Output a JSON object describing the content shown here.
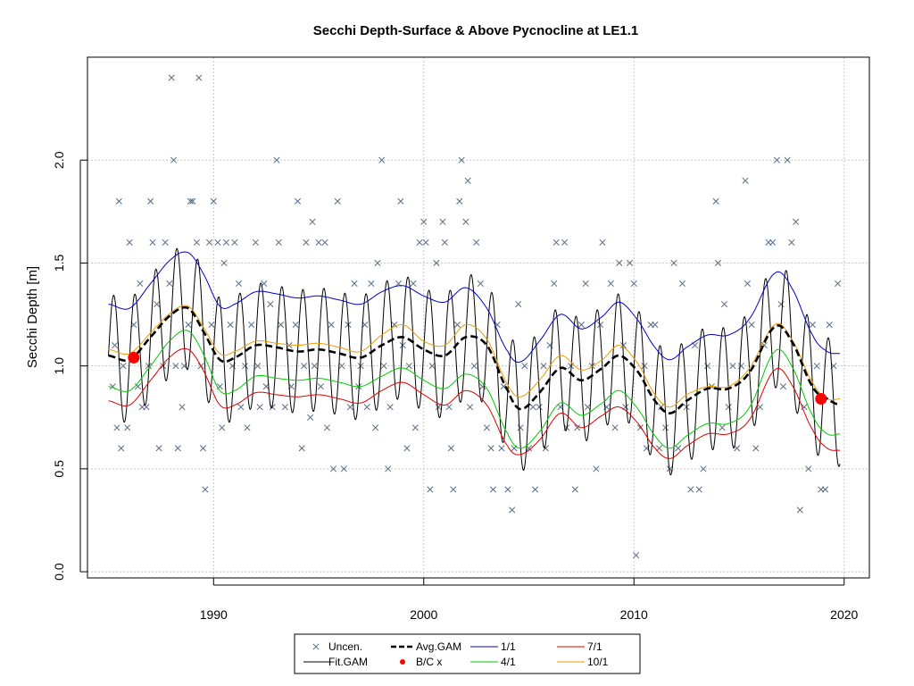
{
  "chart_data": {
    "type": "line",
    "title": "Secchi Depth-Surface & Above Pycnocline at LE1.1",
    "xlabel": "",
    "ylabel": "Secchi Depth [m]",
    "xlim": [
      1984,
      2021.2
    ],
    "ylim": [
      -0.03,
      2.5
    ],
    "x_ticks": [
      "1990",
      "2000",
      "2010",
      "2020"
    ],
    "y_ticks": [
      "0.0",
      "0.5",
      "1.0",
      "1.5",
      "2.0"
    ],
    "grid": true,
    "legend_position": "bottom-center",
    "legend": [
      {
        "label": "Uncen.",
        "symbol": "x"
      },
      {
        "label": "Fit.GAM",
        "symbol": "line"
      },
      {
        "label": "Avg.GAM",
        "symbol": "dashed"
      },
      {
        "label": "B/C x",
        "symbol": "dot"
      },
      {
        "label": "1/1",
        "symbol": "line"
      },
      {
        "label": "4/1",
        "symbol": "line"
      },
      {
        "label": "7/1",
        "symbol": "line"
      },
      {
        "label": "10/1",
        "symbol": "line"
      }
    ],
    "colors": {
      "uncensored": "#5a6b82",
      "fit": "#000000",
      "avg": "#000000",
      "bc": "#ff0000",
      "s1_1": "#0000cc",
      "s4_1": "#00cc00",
      "s7_1": "#dd0000",
      "s10_1": "#ee9a00"
    },
    "avg_gam": {
      "x": [
        1985.0,
        1986.0,
        1987.0,
        1988.0,
        1988.8,
        1989.5,
        1990.3,
        1991.0,
        1992.0,
        1993.0,
        1994.0,
        1995.0,
        1996.0,
        1997.0,
        1998.0,
        1999.0,
        2000.0,
        2001.0,
        2002.0,
        2003.0,
        2004.0,
        2004.6,
        2005.5,
        2006.5,
        2007.5,
        2008.5,
        2009.3,
        2010.2,
        2011.0,
        2011.7,
        2012.5,
        2013.5,
        2014.5,
        2015.5,
        2016.7,
        2017.5,
        2018.5,
        2019.2,
        2019.8
      ],
      "y": [
        1.05,
        1.03,
        1.14,
        1.25,
        1.28,
        1.17,
        1.03,
        1.04,
        1.1,
        1.09,
        1.07,
        1.08,
        1.06,
        1.04,
        1.1,
        1.14,
        1.08,
        1.05,
        1.14,
        1.1,
        0.88,
        0.79,
        0.87,
        0.99,
        0.93,
        0.99,
        1.05,
        0.97,
        0.83,
        0.77,
        0.83,
        0.89,
        0.89,
        0.97,
        1.19,
        1.12,
        0.9,
        0.84,
        0.81
      ]
    },
    "series_1_1": {
      "x": [
        1985.0,
        1986.0,
        1987.0,
        1988.0,
        1988.8,
        1989.5,
        1990.3,
        1991.0,
        1992.0,
        1993.0,
        1994.0,
        1995.0,
        1996.0,
        1997.0,
        1998.0,
        1999.0,
        2000.0,
        2001.0,
        2002.0,
        2003.0,
        2004.0,
        2004.6,
        2005.5,
        2006.5,
        2007.5,
        2008.5,
        2009.3,
        2010.2,
        2011.0,
        2011.7,
        2012.5,
        2013.5,
        2014.5,
        2015.5,
        2016.7,
        2017.5,
        2018.5,
        2019.2,
        2019.8
      ],
      "y": [
        1.3,
        1.28,
        1.4,
        1.52,
        1.55,
        1.45,
        1.29,
        1.3,
        1.36,
        1.35,
        1.33,
        1.34,
        1.32,
        1.3,
        1.36,
        1.39,
        1.34,
        1.31,
        1.38,
        1.28,
        1.07,
        1.02,
        1.12,
        1.25,
        1.18,
        1.24,
        1.31,
        1.22,
        1.09,
        1.03,
        1.09,
        1.15,
        1.15,
        1.23,
        1.45,
        1.38,
        1.15,
        1.07,
        1.06
      ]
    },
    "series_4_1": {
      "x": [
        1985.0,
        1986.0,
        1987.0,
        1988.0,
        1988.8,
        1989.5,
        1990.3,
        1991.0,
        1992.0,
        1993.0,
        1994.0,
        1995.0,
        1996.0,
        1997.0,
        1998.0,
        1999.0,
        2000.0,
        2001.0,
        2002.0,
        2003.0,
        2004.0,
        2004.6,
        2005.5,
        2006.5,
        2007.5,
        2008.5,
        2009.3,
        2010.2,
        2011.0,
        2011.7,
        2012.5,
        2013.5,
        2014.5,
        2015.5,
        2016.7,
        2017.5,
        2018.5,
        2019.2,
        2019.8
      ],
      "y": [
        0.9,
        0.88,
        1.0,
        1.13,
        1.17,
        1.06,
        0.88,
        0.88,
        0.95,
        0.94,
        0.93,
        0.94,
        0.92,
        0.9,
        0.95,
        0.99,
        0.93,
        0.89,
        0.96,
        0.89,
        0.67,
        0.6,
        0.68,
        0.82,
        0.76,
        0.82,
        0.88,
        0.79,
        0.66,
        0.6,
        0.66,
        0.72,
        0.72,
        0.8,
        1.07,
        1.0,
        0.76,
        0.67,
        0.67
      ]
    },
    "series_7_1": {
      "x": [
        1985.0,
        1986.0,
        1987.0,
        1988.0,
        1988.8,
        1989.5,
        1990.3,
        1991.0,
        1992.0,
        1993.0,
        1994.0,
        1995.0,
        1996.0,
        1997.0,
        1998.0,
        1999.0,
        2000.0,
        2001.0,
        2002.0,
        2003.0,
        2004.0,
        2004.6,
        2005.5,
        2006.5,
        2007.5,
        2008.5,
        2009.3,
        2010.2,
        2011.0,
        2011.7,
        2012.5,
        2013.5,
        2014.5,
        2015.5,
        2016.7,
        2017.5,
        2018.5,
        2019.2,
        2019.8
      ],
      "y": [
        0.83,
        0.81,
        0.93,
        1.05,
        1.08,
        0.98,
        0.81,
        0.81,
        0.87,
        0.86,
        0.85,
        0.86,
        0.84,
        0.82,
        0.88,
        0.92,
        0.86,
        0.81,
        0.88,
        0.81,
        0.61,
        0.57,
        0.64,
        0.77,
        0.7,
        0.76,
        0.8,
        0.72,
        0.6,
        0.55,
        0.61,
        0.67,
        0.67,
        0.74,
        0.98,
        0.91,
        0.69,
        0.6,
        0.59
      ]
    },
    "series_10_1": {
      "x": [
        1985.0,
        1986.0,
        1987.0,
        1988.0,
        1988.8,
        1989.5,
        1990.3,
        1991.0,
        1992.0,
        1993.0,
        1994.0,
        1995.0,
        1996.0,
        1997.0,
        1998.0,
        1999.0,
        2000.0,
        2001.0,
        2002.0,
        2003.0,
        2004.0,
        2004.6,
        2005.5,
        2006.5,
        2007.5,
        2008.5,
        2009.3,
        2010.2,
        2011.0,
        2011.7,
        2012.5,
        2013.5,
        2014.5,
        2015.5,
        2016.7,
        2017.5,
        2018.5,
        2019.2,
        2019.8
      ],
      "y": [
        1.08,
        1.06,
        1.16,
        1.26,
        1.29,
        1.19,
        1.06,
        1.07,
        1.12,
        1.11,
        1.1,
        1.11,
        1.09,
        1.07,
        1.15,
        1.2,
        1.12,
        1.1,
        1.2,
        1.13,
        0.91,
        0.85,
        0.93,
        1.05,
        0.98,
        1.03,
        1.1,
        1.01,
        0.86,
        0.8,
        0.86,
        0.9,
        0.9,
        0.99,
        1.2,
        1.13,
        0.92,
        0.84,
        0.84
      ]
    },
    "fit_gam": {
      "x_start": 1985.0,
      "x_end": 2019.8,
      "amplitude": 0.3,
      "period_years": 1.0,
      "peak_phase": 0.25
    },
    "bc_points": [
      {
        "x": 1986.2,
        "y": 1.04
      },
      {
        "x": 2018.9,
        "y": 0.84
      }
    ],
    "uncensored": [
      [
        1985.2,
        0.9
      ],
      [
        1985.3,
        1.1
      ],
      [
        1985.4,
        0.7
      ],
      [
        1985.5,
        1.8
      ],
      [
        1985.6,
        0.6
      ],
      [
        1985.7,
        1.0
      ],
      [
        1985.9,
        0.7
      ],
      [
        1986.0,
        1.6
      ],
      [
        1986.2,
        1.2
      ],
      [
        1986.4,
        0.9
      ],
      [
        1986.5,
        1.4
      ],
      [
        1986.6,
        0.8
      ],
      [
        1986.8,
        0.8
      ],
      [
        1986.9,
        1.0
      ],
      [
        1987.0,
        1.8
      ],
      [
        1987.1,
        1.6
      ],
      [
        1987.3,
        1.3
      ],
      [
        1987.4,
        0.6
      ],
      [
        1987.6,
        1.0
      ],
      [
        1987.7,
        1.6
      ],
      [
        1987.9,
        1.4
      ],
      [
        1988.0,
        2.4
      ],
      [
        1988.1,
        2.0
      ],
      [
        1988.2,
        1.0
      ],
      [
        1988.3,
        0.6
      ],
      [
        1988.5,
        0.8
      ],
      [
        1988.6,
        1.0
      ],
      [
        1988.8,
        1.2
      ],
      [
        1988.9,
        1.8
      ],
      [
        1989.0,
        1.8
      ],
      [
        1989.2,
        1.6
      ],
      [
        1989.3,
        2.4
      ],
      [
        1989.4,
        1.0
      ],
      [
        1989.5,
        0.6
      ],
      [
        1989.6,
        0.4
      ],
      [
        1989.8,
        1.6
      ],
      [
        1989.9,
        1.2
      ],
      [
        1990.0,
        1.8
      ],
      [
        1990.2,
        1.6
      ],
      [
        1990.3,
        0.9
      ],
      [
        1990.4,
        0.7
      ],
      [
        1990.5,
        1.5
      ],
      [
        1990.6,
        1.6
      ],
      [
        1990.8,
        1.2
      ],
      [
        1990.9,
        1.0
      ],
      [
        1991.0,
        1.6
      ],
      [
        1991.2,
        1.4
      ],
      [
        1991.3,
        0.8
      ],
      [
        1991.5,
        1.0
      ],
      [
        1991.6,
        0.7
      ],
      [
        1991.8,
        1.2
      ],
      [
        1992.0,
        1.6
      ],
      [
        1992.1,
        1.0
      ],
      [
        1992.2,
        0.8
      ],
      [
        1992.4,
        1.4
      ],
      [
        1992.5,
        0.9
      ],
      [
        1992.7,
        1.3
      ],
      [
        1992.8,
        0.8
      ],
      [
        1993.0,
        2.0
      ],
      [
        1993.1,
        1.6
      ],
      [
        1993.2,
        1.2
      ],
      [
        1993.4,
        0.8
      ],
      [
        1993.6,
        1.1
      ],
      [
        1993.7,
        0.9
      ],
      [
        1993.9,
        1.2
      ],
      [
        1994.0,
        1.8
      ],
      [
        1994.2,
        0.6
      ],
      [
        1994.3,
        1.0
      ],
      [
        1994.4,
        1.6
      ],
      [
        1994.6,
        0.75
      ],
      [
        1994.7,
        1.7
      ],
      [
        1994.8,
        1.0
      ],
      [
        1995.0,
        1.6
      ],
      [
        1995.1,
        0.9
      ],
      [
        1995.3,
        1.6
      ],
      [
        1995.4,
        0.7
      ],
      [
        1995.6,
        1.2
      ],
      [
        1995.7,
        0.5
      ],
      [
        1995.9,
        1.8
      ],
      [
        1996.1,
        1.0
      ],
      [
        1996.2,
        0.5
      ],
      [
        1996.4,
        1.2
      ],
      [
        1996.5,
        0.8
      ],
      [
        1996.7,
        1.4
      ],
      [
        1996.9,
        0.9
      ],
      [
        1997.0,
        1.0
      ],
      [
        1997.2,
        1.2
      ],
      [
        1997.3,
        0.8
      ],
      [
        1997.5,
        1.4
      ],
      [
        1997.7,
        0.7
      ],
      [
        1997.8,
        1.5
      ],
      [
        1998.0,
        2.0
      ],
      [
        1998.1,
        1.0
      ],
      [
        1998.3,
        0.5
      ],
      [
        1998.4,
        0.8
      ],
      [
        1998.6,
        1.2
      ],
      [
        1998.8,
        1.4
      ],
      [
        1998.9,
        1.8
      ],
      [
        1999.0,
        1.1
      ],
      [
        1999.2,
        0.6
      ],
      [
        1999.3,
        1.0
      ],
      [
        1999.5,
        1.4
      ],
      [
        1999.6,
        0.7
      ],
      [
        1999.8,
        1.6
      ],
      [
        2000.0,
        1.7
      ],
      [
        2000.1,
        1.6
      ],
      [
        2000.3,
        0.4
      ],
      [
        2000.4,
        1.0
      ],
      [
        2000.6,
        1.5
      ],
      [
        2000.7,
        0.8
      ],
      [
        2000.9,
        1.7
      ],
      [
        2001.0,
        1.6
      ],
      [
        2001.2,
        0.8
      ],
      [
        2001.3,
        0.6
      ],
      [
        2001.4,
        0.4
      ],
      [
        2001.6,
        1.2
      ],
      [
        2001.7,
        1.8
      ],
      [
        2001.8,
        2.0
      ],
      [
        2002.0,
        1.7
      ],
      [
        2002.1,
        1.9
      ],
      [
        2002.2,
        0.8
      ],
      [
        2002.4,
        1.0
      ],
      [
        2002.5,
        1.6
      ],
      [
        2002.7,
        1.4
      ],
      [
        2002.8,
        0.9
      ],
      [
        2003.0,
        0.7
      ],
      [
        2003.2,
        0.6
      ],
      [
        2003.3,
        0.4
      ],
      [
        2003.5,
        1.2
      ],
      [
        2003.7,
        0.6
      ],
      [
        2003.8,
        0.9
      ],
      [
        2004.0,
        0.4
      ],
      [
        2004.2,
        0.3
      ],
      [
        2004.3,
        0.6
      ],
      [
        2004.5,
        1.3
      ],
      [
        2004.6,
        0.7
      ],
      [
        2004.8,
        1.0
      ],
      [
        2005.0,
        0.6
      ],
      [
        2005.2,
        0.8
      ],
      [
        2005.3,
        0.4
      ],
      [
        2005.5,
        0.8
      ],
      [
        2005.7,
        1.0
      ],
      [
        2005.8,
        0.6
      ],
      [
        2006.0,
        1.1
      ],
      [
        2006.2,
        1.4
      ],
      [
        2006.3,
        1.6
      ],
      [
        2006.5,
        0.8
      ],
      [
        2006.7,
        1.6
      ],
      [
        2006.8,
        0.7
      ],
      [
        2007.0,
        1.0
      ],
      [
        2007.2,
        0.4
      ],
      [
        2007.3,
        0.7
      ],
      [
        2007.5,
        1.2
      ],
      [
        2007.7,
        1.4
      ],
      [
        2007.8,
        0.8
      ],
      [
        2008.0,
        1.0
      ],
      [
        2008.2,
        0.5
      ],
      [
        2008.4,
        1.2
      ],
      [
        2008.5,
        1.6
      ],
      [
        2008.7,
        0.8
      ],
      [
        2008.9,
        1.4
      ],
      [
        2009.1,
        0.7
      ],
      [
        2009.3,
        1.5
      ],
      [
        2009.5,
        1.1
      ],
      [
        2009.6,
        0.8
      ],
      [
        2009.8,
        1.5
      ],
      [
        2010.0,
        1.4
      ],
      [
        2010.1,
        0.08
      ],
      [
        2010.3,
        0.7
      ],
      [
        2010.5,
        1.0
      ],
      [
        2010.6,
        0.6
      ],
      [
        2010.8,
        1.2
      ],
      [
        2011.0,
        1.2
      ],
      [
        2011.2,
        0.6
      ],
      [
        2011.3,
        0.8
      ],
      [
        2011.5,
        0.7
      ],
      [
        2011.7,
        0.5
      ],
      [
        2011.9,
        1.5
      ],
      [
        2012.1,
        0.6
      ],
      [
        2012.3,
        1.4
      ],
      [
        2012.5,
        0.8
      ],
      [
        2012.7,
        0.4
      ],
      [
        2012.9,
        1.1
      ],
      [
        2013.1,
        0.4
      ],
      [
        2013.3,
        0.5
      ],
      [
        2013.5,
        1.0
      ],
      [
        2013.7,
        0.9
      ],
      [
        2013.9,
        1.8
      ],
      [
        2014.0,
        1.5
      ],
      [
        2014.2,
        0.7
      ],
      [
        2014.3,
        1.3
      ],
      [
        2014.5,
        0.8
      ],
      [
        2014.7,
        1.0
      ],
      [
        2014.9,
        0.6
      ],
      [
        2015.1,
        1.0
      ],
      [
        2015.3,
        1.9
      ],
      [
        2015.4,
        1.4
      ],
      [
        2015.6,
        1.2
      ],
      [
        2015.8,
        0.6
      ],
      [
        2016.0,
        0.8
      ],
      [
        2016.2,
        1.1
      ],
      [
        2016.4,
        1.6
      ],
      [
        2016.6,
        1.6
      ],
      [
        2016.8,
        2.0
      ],
      [
        2017.0,
        1.3
      ],
      [
        2017.1,
        0.9
      ],
      [
        2017.3,
        2.0
      ],
      [
        2017.5,
        1.6
      ],
      [
        2017.7,
        1.7
      ],
      [
        2017.9,
        0.3
      ],
      [
        2018.1,
        0.8
      ],
      [
        2018.3,
        0.5
      ],
      [
        2018.5,
        1.2
      ],
      [
        2018.7,
        1.0
      ],
      [
        2018.9,
        0.4
      ],
      [
        2019.1,
        0.4
      ],
      [
        2019.3,
        1.2
      ],
      [
        2019.5,
        1.0
      ],
      [
        2019.7,
        1.4
      ]
    ]
  }
}
